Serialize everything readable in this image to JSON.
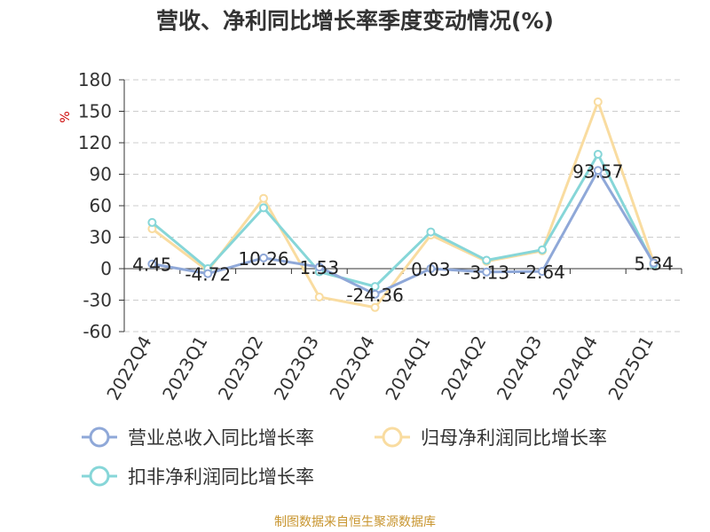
{
  "chart_data": {
    "type": "line",
    "title": "营收、净利同比增长率季度变动情况(%)",
    "ylabel": "%",
    "ylim": [
      -60,
      180
    ],
    "yticks": [
      180,
      150,
      120,
      90,
      60,
      30,
      0,
      -30,
      -60
    ],
    "grid": true,
    "legend_position": "bottom",
    "categories": [
      "2022Q4",
      "2023Q1",
      "2023Q2",
      "2023Q3",
      "2023Q4",
      "2024Q1",
      "2024Q2",
      "2024Q3",
      "2024Q4",
      "2025Q1"
    ],
    "series": [
      {
        "name": "营业总收入同比增长率",
        "color": "#8fa8d8",
        "values": [
          4.45,
          -4.72,
          10.26,
          1.53,
          -24.36,
          0.03,
          -3.13,
          -2.64,
          93.57,
          5.34
        ],
        "labels": [
          "4.45",
          "-4.72",
          "10.26",
          "1.53",
          "-24.36",
          "0.03",
          "-3.13",
          "-2.64",
          "93.57",
          "5.34"
        ]
      },
      {
        "name": "归母净利润同比增长率",
        "color": "#f9dca0",
        "values": [
          38,
          -2,
          67,
          -27,
          -37,
          32,
          7,
          17,
          159,
          6
        ]
      },
      {
        "name": "扣非净利润同比增长率",
        "color": "#86d6d8",
        "values": [
          44,
          0,
          58,
          -3,
          -17,
          35,
          8,
          18,
          109,
          4
        ]
      }
    ],
    "source": "制图数据来自恒生聚源数据库"
  }
}
